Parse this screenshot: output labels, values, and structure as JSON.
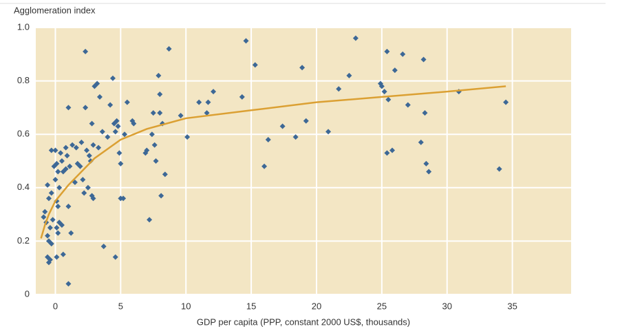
{
  "chart_data": {
    "type": "scatter",
    "title": "Agglomeration index",
    "x_label": "GDP per capita (PPP, constant 2000 US$, thousands)",
    "xlim": [
      -1.5,
      39.5
    ],
    "ylim": [
      0,
      1
    ],
    "xticks": [
      0,
      5,
      10,
      15,
      20,
      25,
      30,
      35
    ],
    "yticks": [
      0,
      0.2,
      0.4,
      0.6,
      0.8,
      {
        "value": 1,
        "label": "1.0"
      }
    ],
    "grid": true,
    "background": "#f3e6c4",
    "color": "#3d6896",
    "x": [
      -0.9,
      -0.8,
      -0.7,
      -0.6,
      -0.5,
      -0.6,
      -0.5,
      -0.4,
      -0.5,
      -0.6,
      -0.3,
      -0.4,
      -0.3,
      -0.2,
      -0.3,
      0,
      0.1,
      -0.1,
      0.2,
      0,
      0.1,
      0.2,
      0.3,
      0.3,
      0.5,
      0.1,
      0.6,
      0.2,
      0.1,
      0.4,
      0.5,
      0.6,
      0.8,
      0.9,
      1.0,
      1.0,
      1.2,
      1.0,
      0.8,
      1.1,
      1.3,
      1.5,
      1.6,
      1.7,
      1.9,
      2.0,
      2.1,
      2.2,
      2.3,
      2.3,
      2.4,
      2.6,
      2.7,
      2.5,
      2.8,
      2.9,
      2.8,
      2.9,
      3.0,
      3.2,
      3.3,
      3.4,
      3.6,
      3.7,
      4.0,
      4.2,
      4.4,
      4.5,
      4.6,
      4.6,
      4.7,
      4.8,
      4.9,
      5.0,
      5.0,
      5.2,
      5.3,
      5.5,
      5.9,
      6.0,
      6.9,
      7.0,
      7.2,
      7.4,
      7.5,
      7.6,
      7.7,
      7.9,
      8.0,
      8.0,
      8.1,
      8.2,
      8.4,
      8.7,
      9.6,
      10.1,
      11.0,
      11.7,
      11.6,
      12.1,
      14.3,
      14.6,
      15.3,
      16.0,
      16.3,
      17.4,
      18.4,
      18.9,
      19.2,
      20.9,
      21.7,
      22.5,
      23.0,
      24.9,
      25.0,
      25.2,
      25.4,
      25.5,
      25.4,
      25.8,
      26.0,
      26.6,
      27.0,
      28.0,
      28.2,
      28.3,
      28.4,
      28.6,
      30.9,
      34.0,
      34.5
    ],
    "values": [
      0.29,
      0.31,
      0.27,
      0.22,
      0.2,
      0.14,
      0.12,
      0.13,
      0.36,
      0.41,
      0.38,
      0.25,
      0.19,
      0.28,
      0.54,
      0.54,
      0.49,
      0.48,
      0.46,
      0.43,
      0.35,
      0.33,
      0.4,
      0.27,
      0.26,
      0.14,
      0.15,
      0.23,
      0.25,
      0.53,
      0.5,
      0.46,
      0.55,
      0.52,
      0.7,
      0.33,
      0.23,
      0.04,
      0.47,
      0.48,
      0.56,
      0.42,
      0.55,
      0.49,
      0.48,
      0.57,
      0.43,
      0.38,
      0.91,
      0.7,
      0.54,
      0.52,
      0.5,
      0.4,
      0.37,
      0.36,
      0.64,
      0.56,
      0.78,
      0.79,
      0.55,
      0.74,
      0.61,
      0.18,
      0.59,
      0.71,
      0.81,
      0.64,
      0.61,
      0.14,
      0.65,
      0.63,
      0.53,
      0.49,
      0.36,
      0.36,
      0.6,
      0.72,
      0.65,
      0.64,
      0.53,
      0.54,
      0.28,
      0.6,
      0.68,
      0.56,
      0.5,
      0.82,
      0.75,
      0.68,
      0.37,
      0.64,
      0.45,
      0.92,
      0.67,
      0.59,
      0.72,
      0.72,
      0.68,
      0.76,
      0.74,
      0.95,
      0.86,
      0.48,
      0.58,
      0.63,
      0.59,
      0.85,
      0.65,
      0.61,
      0.77,
      0.82,
      0.96,
      0.79,
      0.78,
      0.76,
      0.53,
      0.73,
      0.91,
      0.54,
      0.84,
      0.9,
      0.71,
      0.57,
      0.88,
      0.68,
      0.49,
      0.46,
      0.76,
      0.47,
      0.72
    ],
    "trend": {
      "color": "#dba033",
      "x": [
        -1.1,
        -0.8,
        -0.5,
        0,
        1,
        2,
        3,
        5,
        7,
        10,
        15,
        20,
        25,
        30,
        34.5
      ],
      "values": [
        0.21,
        0.26,
        0.3,
        0.35,
        0.41,
        0.46,
        0.51,
        0.58,
        0.62,
        0.66,
        0.69,
        0.72,
        0.74,
        0.76,
        0.78
      ]
    }
  }
}
